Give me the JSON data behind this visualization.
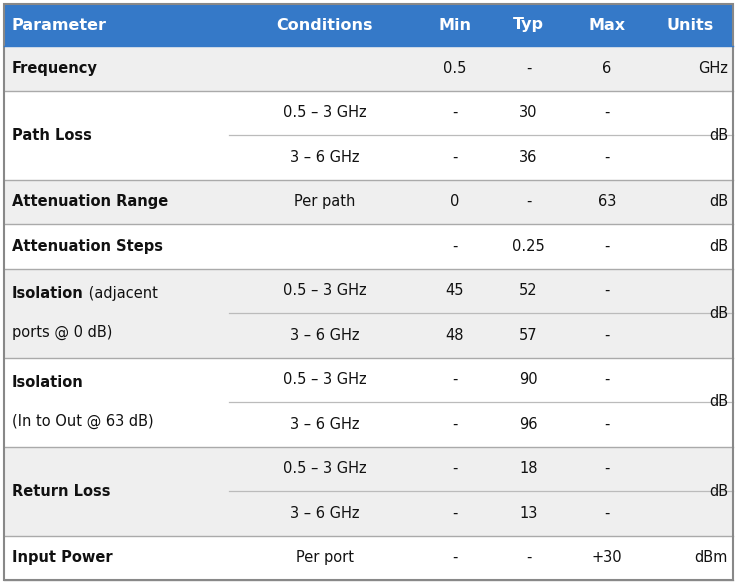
{
  "header": [
    "Parameter",
    "Conditions",
    "Min",
    "Typ",
    "Max",
    "Units"
  ],
  "header_bg": "#3579C8",
  "header_text_color": "#FFFFFF",
  "row_bg_A": "#EFEFEF",
  "row_bg_B": "#FFFFFF",
  "text_color": "#111111",
  "rows": [
    {
      "param_lines": [
        [
          "Frequency",
          "bold"
        ]
      ],
      "sub_rows": [
        {
          "conditions": "",
          "min": "0.5",
          "typ": "-",
          "max": "6",
          "units": "GHz"
        }
      ],
      "units_value": "GHz",
      "bg": "A"
    },
    {
      "param_lines": [
        [
          "Path Loss",
          "bold"
        ]
      ],
      "sub_rows": [
        {
          "conditions": "0.5 – 3 GHz",
          "min": "-",
          "typ": "30",
          "max": "-"
        },
        {
          "conditions": "3 – 6 GHz",
          "min": "-",
          "typ": "36",
          "max": "-"
        }
      ],
      "units_value": "dB",
      "bg": "B"
    },
    {
      "param_lines": [
        [
          "Attenuation Range",
          "bold"
        ]
      ],
      "sub_rows": [
        {
          "conditions": "Per path",
          "min": "0",
          "typ": "-",
          "max": "63",
          "units": "dB"
        }
      ],
      "units_value": "dB",
      "bg": "A"
    },
    {
      "param_lines": [
        [
          "Attenuation Steps",
          "bold"
        ]
      ],
      "sub_rows": [
        {
          "conditions": "",
          "min": "-",
          "typ": "0.25",
          "max": "-",
          "units": "dB"
        }
      ],
      "units_value": "dB",
      "bg": "B"
    },
    {
      "param_lines": [
        [
          "Isolation",
          "bold"
        ],
        [
          " (adjacent",
          "normal"
        ],
        [
          "ports @ 0 dB)",
          "normal"
        ]
      ],
      "sub_rows": [
        {
          "conditions": "0.5 – 3 GHz",
          "min": "45",
          "typ": "52",
          "max": "-"
        },
        {
          "conditions": "3 – 6 GHz",
          "min": "48",
          "typ": "57",
          "max": "-"
        }
      ],
      "units_value": "dB",
      "bg": "A"
    },
    {
      "param_lines": [
        [
          "Isolation",
          "bold"
        ],
        [
          "(In to Out @ 63 dB)",
          "normal"
        ]
      ],
      "sub_rows": [
        {
          "conditions": "0.5 – 3 GHz",
          "min": "-",
          "typ": "90",
          "max": "-"
        },
        {
          "conditions": "3 – 6 GHz",
          "min": "-",
          "typ": "96",
          "max": "-"
        }
      ],
      "units_value": "dB",
      "bg": "B"
    },
    {
      "param_lines": [
        [
          "Return Loss",
          "bold"
        ]
      ],
      "sub_rows": [
        {
          "conditions": "0.5 – 3 GHz",
          "min": "-",
          "typ": "18",
          "max": "-"
        },
        {
          "conditions": "3 – 6 GHz",
          "min": "-",
          "typ": "13",
          "max": "-"
        }
      ],
      "units_value": "dB",
      "bg": "A"
    },
    {
      "param_lines": [
        [
          "Input Power",
          "bold"
        ]
      ],
      "sub_rows": [
        {
          "conditions": "Per port",
          "min": "-",
          "typ": "-",
          "max": "+30",
          "units": "dBm"
        }
      ],
      "units_value": "dBm",
      "bg": "B"
    }
  ],
  "figsize": [
    7.37,
    5.84
  ],
  "dpi": 100
}
